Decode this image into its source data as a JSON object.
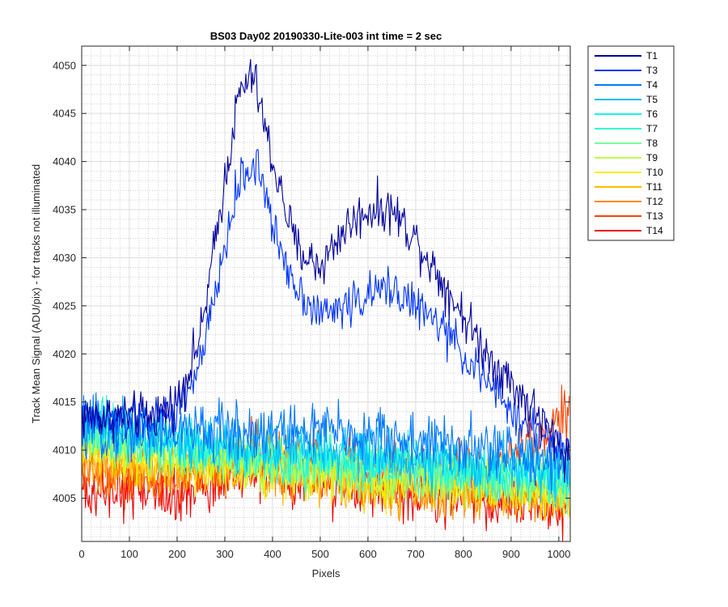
{
  "chart_data": {
    "type": "line",
    "title": "BS03 Day02 20190330-Lite-003 int time = 2 sec",
    "xlabel": "Pixels",
    "ylabel": "Track Mean Signal (ADU/pix) - for tracks not illuminated",
    "xlim": [
      0,
      1024
    ],
    "ylim": [
      4000.5,
      4052
    ],
    "xticks": [
      0,
      100,
      200,
      300,
      400,
      500,
      600,
      700,
      800,
      900,
      1000
    ],
    "yticks": [
      4005,
      4010,
      4015,
      4020,
      4025,
      4030,
      4035,
      4040,
      4045,
      4050
    ],
    "grid": "major and minor",
    "legend_position": "outside top-right",
    "series": [
      {
        "name": "T1",
        "color": "#00009c",
        "noise": 1.2,
        "x": [
          0,
          150,
          200,
          250,
          300,
          330,
          360,
          400,
          450,
          500,
          550,
          600,
          650,
          700,
          750,
          800,
          850,
          900,
          950,
          1024
        ],
        "y": [
          4013.5,
          4013.5,
          4015,
          4022,
          4038,
          4047,
          4049,
          4040,
          4031,
          4029,
          4033,
          4035,
          4035,
          4032,
          4028,
          4024,
          4020,
          4017,
          4014,
          4009
        ]
      },
      {
        "name": "T3",
        "color": "#0033ff",
        "noise": 1.1,
        "x": [
          0,
          150,
          200,
          250,
          300,
          330,
          370,
          400,
          450,
          500,
          550,
          600,
          650,
          700,
          750,
          800,
          850,
          900,
          950,
          1024
        ],
        "y": [
          4013,
          4013,
          4014,
          4019,
          4031,
          4038,
          4040,
          4033,
          4027,
          4024,
          4025,
          4026,
          4027,
          4025,
          4023,
          4020,
          4017,
          4014,
          4012,
          4010
        ]
      },
      {
        "name": "T4",
        "color": "#0077ff",
        "noise": 1.5,
        "x": [
          0,
          300,
          500,
          700,
          850,
          1024
        ],
        "y": [
          4012,
          4012,
          4012,
          4011,
          4010,
          4009
        ]
      },
      {
        "name": "T5",
        "color": "#00bbff",
        "noise": 1.4,
        "x": [
          0,
          200,
          500,
          700,
          1024
        ],
        "y": [
          4012.5,
          4011,
          4010,
          4009,
          4008
        ]
      },
      {
        "name": "T6",
        "color": "#13f4ee",
        "noise": 1.4,
        "x": [
          0,
          200,
          500,
          800,
          1024
        ],
        "y": [
          4013,
          4011,
          4009,
          4008,
          4007
        ]
      },
      {
        "name": "T7",
        "color": "#33ffcc",
        "noise": 1.4,
        "x": [
          0,
          200,
          500,
          800,
          1024
        ],
        "y": [
          4012,
          4010.5,
          4009,
          4008,
          4007
        ]
      },
      {
        "name": "T8",
        "color": "#77ff99",
        "noise": 1.4,
        "x": [
          0,
          200,
          500,
          800,
          1024
        ],
        "y": [
          4011.5,
          4010,
          4008.5,
          4007.5,
          4006.5
        ]
      },
      {
        "name": "T9",
        "color": "#bbff44",
        "noise": 1.4,
        "x": [
          0,
          200,
          500,
          800,
          1024
        ],
        "y": [
          4011,
          4009.5,
          4008,
          4007,
          4006
        ]
      },
      {
        "name": "T10",
        "color": "#ffee00",
        "noise": 1.4,
        "x": [
          0,
          200,
          500,
          800,
          1024
        ],
        "y": [
          4010.5,
          4009,
          4007.5,
          4006.5,
          4005.5
        ]
      },
      {
        "name": "T11",
        "color": "#ffbb00",
        "noise": 1.4,
        "x": [
          0,
          200,
          500,
          800,
          1024
        ],
        "y": [
          4009.5,
          4008.5,
          4007,
          4006,
          4005
        ]
      },
      {
        "name": "T12",
        "color": "#ff8800",
        "noise": 1.4,
        "x": [
          0,
          200,
          370,
          500,
          800,
          1024
        ],
        "y": [
          4008.5,
          4007.5,
          4009,
          4007,
          4006,
          4005
        ]
      },
      {
        "name": "T13",
        "color": "#ff4400",
        "noise": 1.4,
        "x": [
          0,
          200,
          370,
          500,
          700,
          850,
          920,
          1024
        ],
        "y": [
          4007.5,
          4007,
          4010,
          4009,
          4008,
          4008,
          4010,
          4014
        ]
      },
      {
        "name": "T14",
        "color": "#ee0000",
        "noise": 1.5,
        "x": [
          0,
          200,
          370,
          500,
          800,
          1024
        ],
        "y": [
          4005.5,
          4005.5,
          4007.5,
          4006.5,
          4005,
          4004
        ]
      }
    ]
  }
}
